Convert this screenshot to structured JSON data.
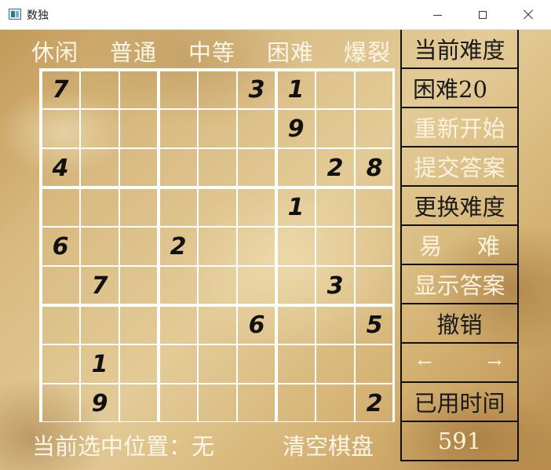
{
  "window": {
    "title": "数独",
    "icon": "app-window-icon"
  },
  "difficulty_menu": [
    "休闲",
    "普通",
    "中等",
    "困难",
    "爆裂"
  ],
  "board": {
    "givens": [
      {
        "row": 0,
        "col": 0,
        "value": "7"
      },
      {
        "row": 0,
        "col": 5,
        "value": "3"
      },
      {
        "row": 0,
        "col": 6,
        "value": "1"
      },
      {
        "row": 1,
        "col": 6,
        "value": "9"
      },
      {
        "row": 2,
        "col": 0,
        "value": "4"
      },
      {
        "row": 2,
        "col": 7,
        "value": "2"
      },
      {
        "row": 2,
        "col": 8,
        "value": "8"
      },
      {
        "row": 3,
        "col": 6,
        "value": "1"
      },
      {
        "row": 4,
        "col": 0,
        "value": "6"
      },
      {
        "row": 4,
        "col": 3,
        "value": "2"
      },
      {
        "row": 5,
        "col": 1,
        "value": "7"
      },
      {
        "row": 5,
        "col": 7,
        "value": "3"
      },
      {
        "row": 6,
        "col": 5,
        "value": "6"
      },
      {
        "row": 6,
        "col": 8,
        "value": "5"
      },
      {
        "row": 7,
        "col": 1,
        "value": "1"
      },
      {
        "row": 8,
        "col": 1,
        "value": "9"
      },
      {
        "row": 8,
        "col": 8,
        "value": "2"
      }
    ]
  },
  "side_panel": {
    "current_difficulty_label": "当前难度",
    "current_level": "困难20",
    "restart": "重新开始",
    "submit": "提交答案",
    "change_difficulty": "更换难度",
    "easy": "易",
    "hard": "难",
    "show_answer": "显示答案",
    "undo": "撤销",
    "prev_arrow": "←",
    "next_arrow": "→",
    "elapsed_label": "已用时间",
    "elapsed_value": "591"
  },
  "footer": {
    "selected_position": "当前选中位置：无",
    "clear_board": "清空棋盘"
  },
  "colors": {
    "grid_line": "#ffffff",
    "given_digit": "#111111",
    "panel_border": "#111111",
    "light_text": "#fbf2df",
    "dark_text": "#1a1a1a"
  }
}
